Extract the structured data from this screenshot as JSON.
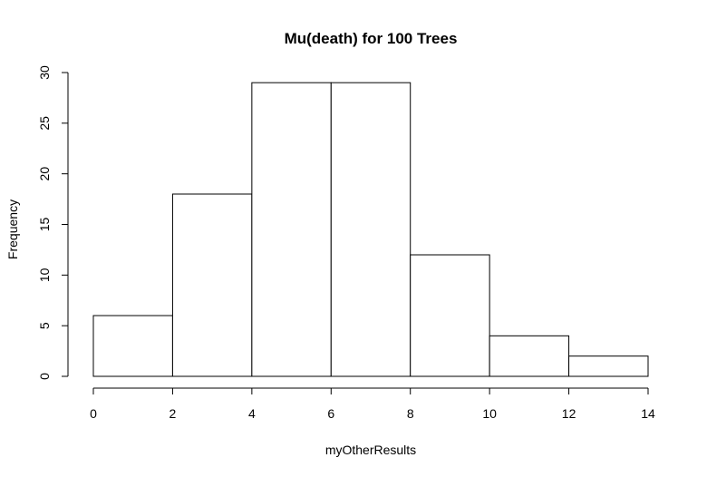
{
  "chart_data": {
    "type": "bar",
    "title": "Mu(death) for 100 Trees",
    "xlabel": "myOtherResults",
    "ylabel": "Frequency",
    "bins": [
      {
        "from": 0,
        "to": 2,
        "count": 6
      },
      {
        "from": 2,
        "to": 4,
        "count": 18
      },
      {
        "from": 4,
        "to": 6,
        "count": 29
      },
      {
        "from": 6,
        "to": 8,
        "count": 29
      },
      {
        "from": 8,
        "to": 10,
        "count": 12
      },
      {
        "from": 10,
        "to": 12,
        "count": 4
      },
      {
        "from": 12,
        "to": 14,
        "count": 2
      }
    ],
    "xticks": [
      "0",
      "2",
      "4",
      "6",
      "8",
      "10",
      "12",
      "14"
    ],
    "yticks": [
      "0",
      "5",
      "10",
      "15",
      "20",
      "25",
      "30"
    ],
    "xlim": [
      0,
      14
    ],
    "ylim": [
      0,
      30
    ],
    "grid": false,
    "legend": "none",
    "colors": {
      "bar_fill": "#ffffff",
      "bar_stroke": "#000000"
    }
  }
}
